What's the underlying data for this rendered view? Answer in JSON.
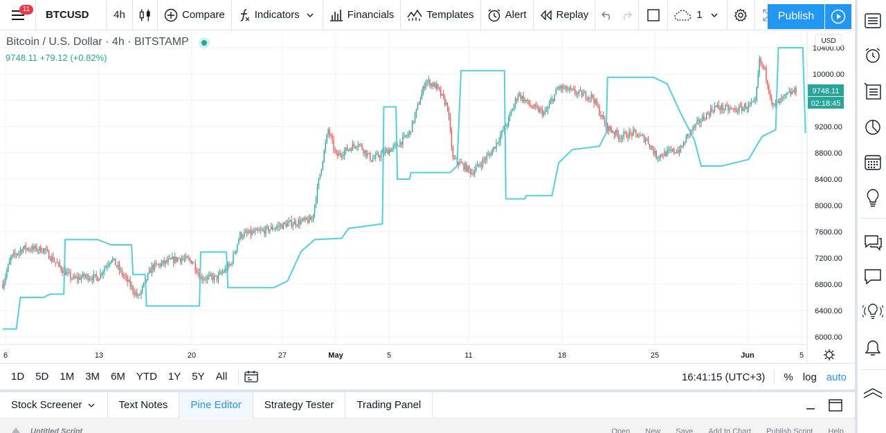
{
  "toolbar": {
    "notifications": "11",
    "symbol": "BTCUSD",
    "interval": "4h",
    "compare": "Compare",
    "indicators": "Indicators",
    "financials": "Financials",
    "templates": "Templates",
    "alert": "Alert",
    "replay": "Replay",
    "layout_count": "1",
    "publish": "Publish"
  },
  "legend": {
    "title": "Bitcoin / U.S. Dollar · 4h · BITSTAMP",
    "values": "9748.11  +79.12 (+0.82%)"
  },
  "price_axis": {
    "currency": "USD",
    "last_price": "9748.11",
    "countdown": "02:18:45",
    "colors": {
      "up": "#26a69a",
      "down": "#ef5350",
      "channel": "#4dd0e1",
      "grid": "#edf0f5"
    }
  },
  "chart_data": {
    "type": "candlestick",
    "title": "Bitcoin / U.S. Dollar · 4h · BITSTAMP",
    "y_ticks": [
      "6000.00",
      "6400.00",
      "6800.00",
      "7200.00",
      "7600.00",
      "8000.00",
      "8400.00",
      "8800.00",
      "9200.00",
      "9600.00",
      "10000.00",
      "10400.00"
    ],
    "ylim": [
      5900,
      10600
    ],
    "x_ticks": [
      "6",
      "13",
      "20",
      "27",
      "May",
      "5",
      "11",
      "18",
      "25",
      "Jun",
      "5"
    ],
    "anchors": [
      {
        "t": 0,
        "c": 6800
      },
      {
        "t": 6,
        "c": 7200
      },
      {
        "t": 15,
        "c": 7350
      },
      {
        "t": 30,
        "c": 7330
      },
      {
        "t": 45,
        "c": 7000
      },
      {
        "t": 52,
        "c": 6880
      },
      {
        "t": 60,
        "c": 6920
      },
      {
        "t": 70,
        "c": 6900
      },
      {
        "t": 80,
        "c": 7200
      },
      {
        "t": 92,
        "c": 6840
      },
      {
        "t": 100,
        "c": 6600
      },
      {
        "t": 110,
        "c": 7060
      },
      {
        "t": 130,
        "c": 7200
      },
      {
        "t": 140,
        "c": 7150
      },
      {
        "t": 146,
        "c": 6900
      },
      {
        "t": 158,
        "c": 6900
      },
      {
        "t": 168,
        "c": 7100
      },
      {
        "t": 175,
        "c": 7550
      },
      {
        "t": 190,
        "c": 7600
      },
      {
        "t": 210,
        "c": 7720
      },
      {
        "t": 228,
        "c": 7780
      },
      {
        "t": 235,
        "c": 8600
      },
      {
        "t": 240,
        "c": 9150
      },
      {
        "t": 246,
        "c": 8750
      },
      {
        "t": 262,
        "c": 8950
      },
      {
        "t": 272,
        "c": 8700
      },
      {
        "t": 290,
        "c": 8900
      },
      {
        "t": 300,
        "c": 9100
      },
      {
        "t": 312,
        "c": 9900
      },
      {
        "t": 320,
        "c": 9800
      },
      {
        "t": 328,
        "c": 9500
      },
      {
        "t": 332,
        "c": 8700
      },
      {
        "t": 340,
        "c": 8600
      },
      {
        "t": 346,
        "c": 8500
      },
      {
        "t": 360,
        "c": 8800
      },
      {
        "t": 372,
        "c": 9250
      },
      {
        "t": 380,
        "c": 9700
      },
      {
        "t": 390,
        "c": 9500
      },
      {
        "t": 400,
        "c": 9400
      },
      {
        "t": 410,
        "c": 9800
      },
      {
        "t": 425,
        "c": 9700
      },
      {
        "t": 435,
        "c": 9650
      },
      {
        "t": 445,
        "c": 9200
      },
      {
        "t": 455,
        "c": 9050
      },
      {
        "t": 465,
        "c": 9100
      },
      {
        "t": 475,
        "c": 9000
      },
      {
        "t": 482,
        "c": 8750
      },
      {
        "t": 490,
        "c": 8800
      },
      {
        "t": 500,
        "c": 8850
      },
      {
        "t": 506,
        "c": 9100
      },
      {
        "t": 515,
        "c": 9300
      },
      {
        "t": 525,
        "c": 9500
      },
      {
        "t": 540,
        "c": 9450
      },
      {
        "t": 555,
        "c": 9550
      },
      {
        "t": 558,
        "c": 10200
      },
      {
        "t": 562,
        "c": 10050
      },
      {
        "t": 568,
        "c": 9500
      },
      {
        "t": 580,
        "c": 9700
      },
      {
        "t": 585,
        "c": 9748
      }
    ],
    "channel": [
      [
        0,
        6120
      ],
      [
        10,
        6120
      ],
      [
        13,
        6600
      ],
      [
        30,
        6600
      ],
      [
        35,
        6650
      ],
      [
        45,
        6650
      ],
      [
        46,
        7480
      ],
      [
        70,
        7480
      ],
      [
        80,
        7400
      ],
      [
        95,
        7400
      ],
      [
        96,
        6950
      ],
      [
        105,
        6950
      ],
      [
        106,
        6470
      ],
      [
        145,
        6470
      ],
      [
        146,
        7290
      ],
      [
        165,
        7290
      ],
      [
        166,
        6750
      ],
      [
        200,
        6750
      ],
      [
        210,
        6850
      ],
      [
        220,
        7300
      ],
      [
        230,
        7480
      ],
      [
        250,
        7500
      ],
      [
        255,
        7650
      ],
      [
        280,
        7720
      ],
      [
        281,
        9500
      ],
      [
        290,
        9500
      ],
      [
        291,
        8400
      ],
      [
        300,
        8400
      ],
      [
        301,
        8500
      ],
      [
        330,
        8500
      ],
      [
        335,
        8600
      ],
      [
        338,
        10050
      ],
      [
        370,
        10050
      ],
      [
        371,
        8100
      ],
      [
        385,
        8100
      ],
      [
        386,
        8150
      ],
      [
        405,
        8150
      ],
      [
        410,
        8650
      ],
      [
        420,
        8850
      ],
      [
        440,
        8900
      ],
      [
        445,
        9100
      ],
      [
        446,
        9950
      ],
      [
        480,
        9950
      ],
      [
        490,
        9850
      ],
      [
        500,
        9400
      ],
      [
        510,
        9000
      ],
      [
        515,
        8600
      ],
      [
        530,
        8600
      ],
      [
        540,
        8650
      ],
      [
        550,
        8700
      ],
      [
        560,
        9050
      ],
      [
        570,
        9150
      ],
      [
        572,
        10400
      ],
      [
        590,
        10400
      ],
      [
        592,
        9100
      ]
    ]
  },
  "ranges": [
    "1D",
    "5D",
    "1M",
    "3M",
    "6M",
    "YTD",
    "1Y",
    "5Y",
    "All"
  ],
  "range_right": {
    "time": "16:41:15 (UTC+3)",
    "percent": "%",
    "log": "log",
    "auto": "auto"
  },
  "bottom_tabs": [
    "Stock Screener",
    "Text Notes",
    "Pine Editor",
    "Strategy Tester",
    "Trading Panel"
  ],
  "editor": {
    "name": "Untitled Script",
    "actions": [
      "Open",
      "New",
      "Save",
      "Add to Chart",
      "Publish Script",
      "Help"
    ]
  }
}
